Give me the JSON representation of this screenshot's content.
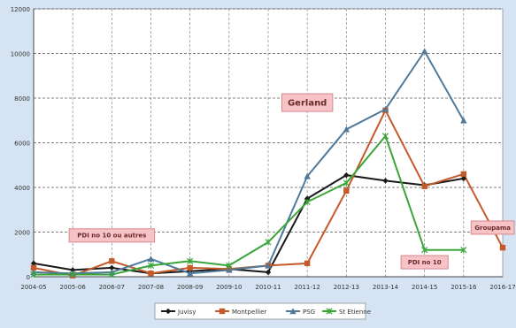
{
  "chart_data": {
    "type": "line",
    "title": "",
    "xlabel": "",
    "ylabel": "",
    "ylim": [
      0,
      12000
    ],
    "yticks": [
      0,
      2000,
      4000,
      6000,
      8000,
      10000,
      12000
    ],
    "grid": true,
    "legend_position": "bottom",
    "categories": [
      "2004-05",
      "2005-06",
      "2006-07",
      "2007-08",
      "2008-09",
      "2009-10",
      "2010-11",
      "2011-12",
      "2012-13",
      "2013-14",
      "2014-15",
      "2015-16",
      "2016-17"
    ],
    "series": [
      {
        "name": "Juvisy",
        "color": "#1a1a1a",
        "marker": "diamond",
        "values": [
          600,
          300,
          400,
          150,
          250,
          350,
          200,
          3500,
          4550,
          4300,
          4100,
          4400,
          null
        ]
      },
      {
        "name": "Montpellier",
        "color": "#c45a2a",
        "marker": "square",
        "values": [
          400,
          50,
          700,
          150,
          400,
          350,
          500,
          600,
          3850,
          7450,
          4050,
          4600,
          1300
        ]
      },
      {
        "name": "PSG",
        "color": "#4f7a9c",
        "marker": "triangle",
        "values": [
          200,
          150,
          200,
          800,
          150,
          300,
          500,
          4500,
          6600,
          7500,
          10100,
          7000,
          null
        ]
      },
      {
        "name": "St Etienne",
        "color": "#3aa63a",
        "marker": "x",
        "values": [
          100,
          100,
          100,
          500,
          700,
          500,
          1550,
          3350,
          4200,
          6300,
          1200,
          1200,
          null
        ]
      }
    ],
    "annotations": [
      {
        "text": "Gerland",
        "category": "2011-12",
        "y": 7800
      },
      {
        "text": "PDI no 10 ou autres",
        "category": "2006-07",
        "y": 1850
      },
      {
        "text": "PDI no 10",
        "category": "2014-15",
        "y": 650
      },
      {
        "text": "Groupama",
        "category": "2016-17",
        "y": 2200
      }
    ]
  }
}
